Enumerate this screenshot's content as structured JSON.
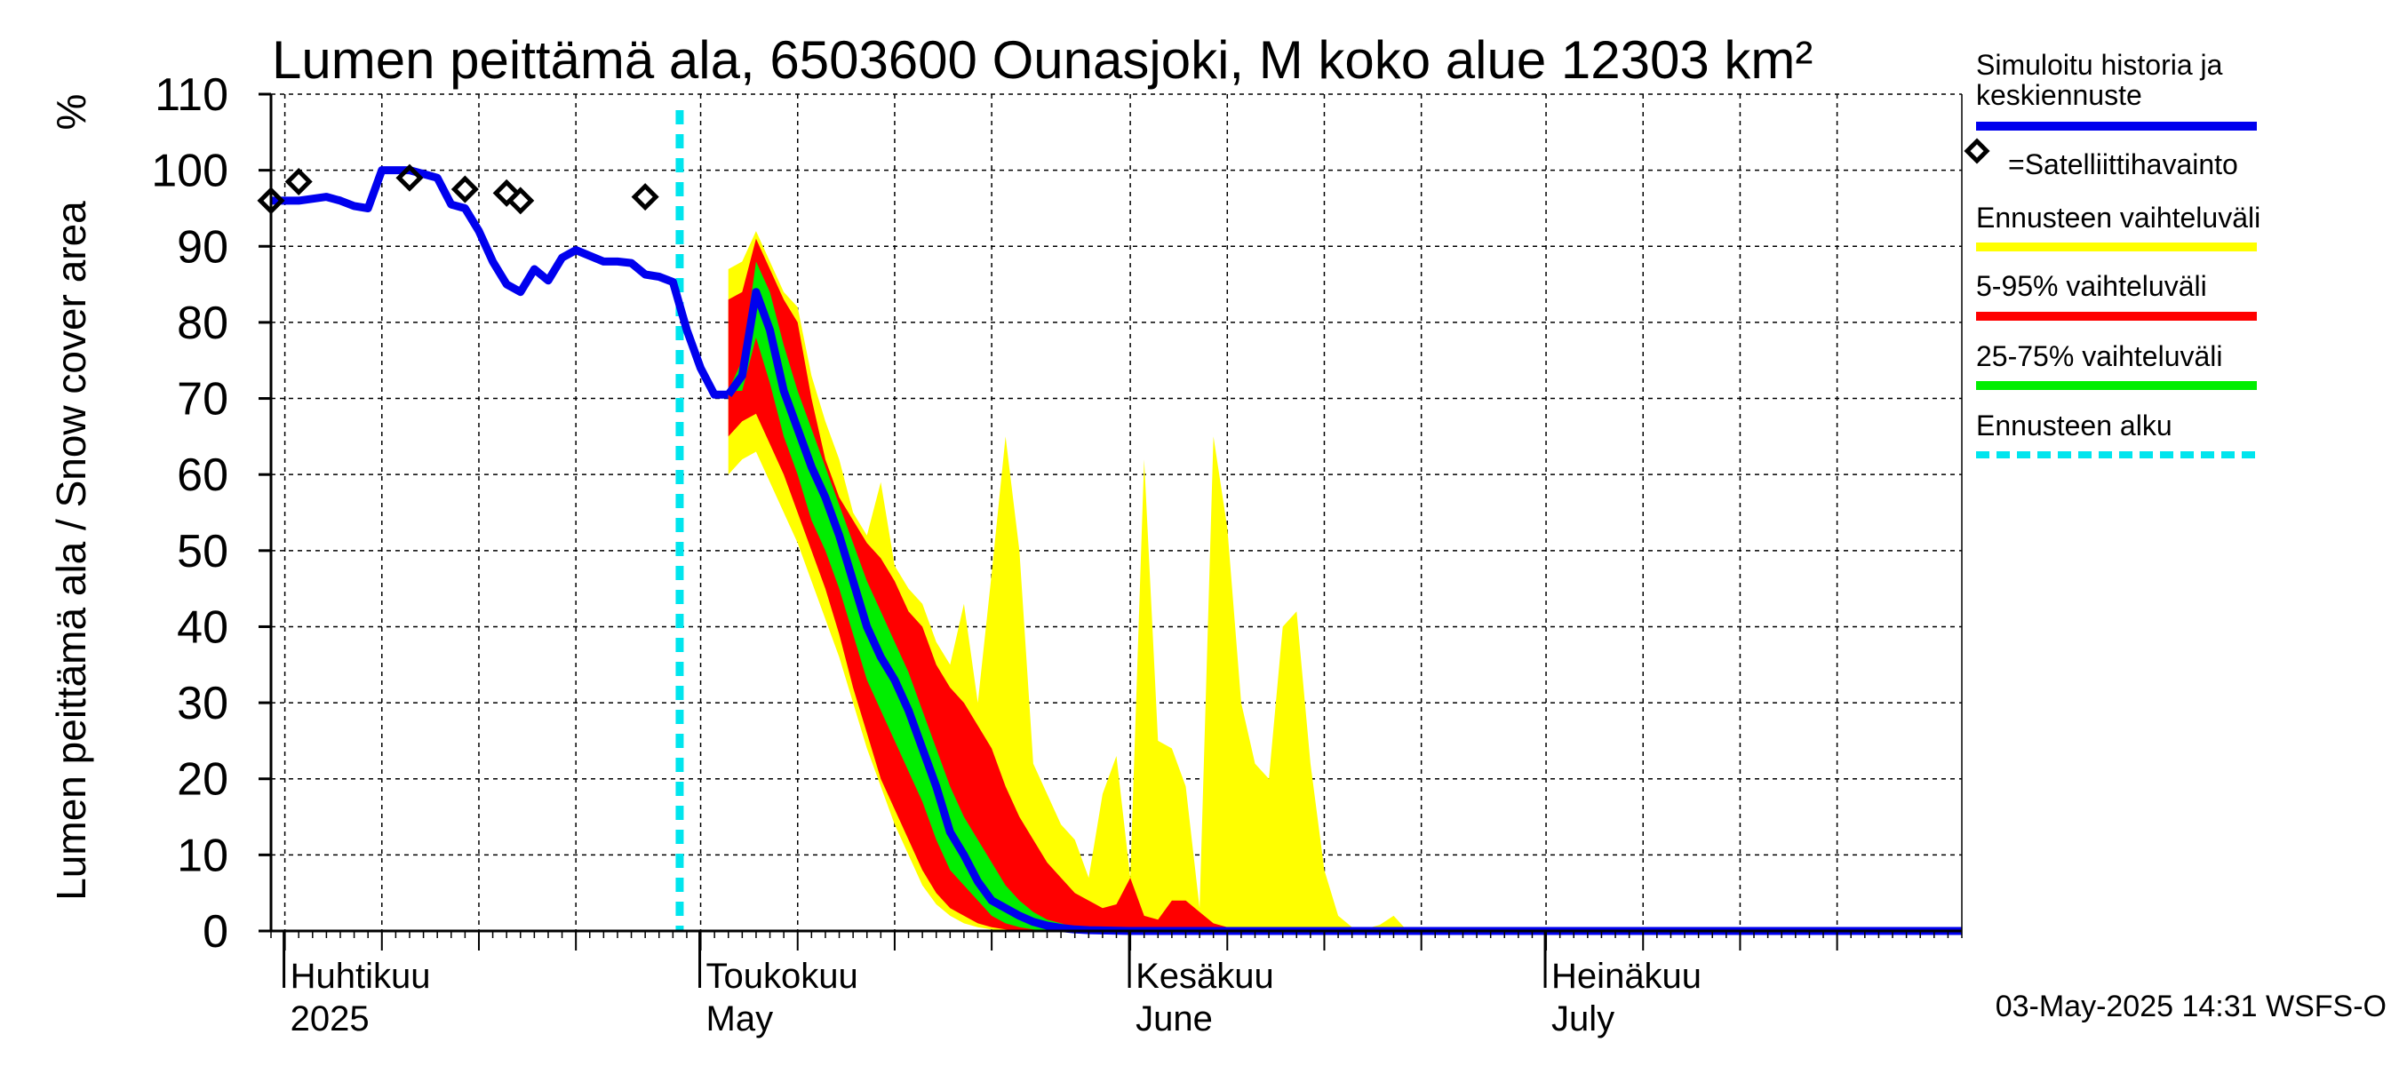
{
  "chart_data": {
    "type": "area",
    "title": "Lumen peittämä ala, 6503600 Ounasjoki, M koko alue 12303 km²",
    "ylabel": "Lumen peittämä ala / Snow cover area",
    "yunit": "%",
    "ylim": [
      0,
      110
    ],
    "yticks": [
      0,
      10,
      20,
      30,
      40,
      50,
      60,
      70,
      80,
      90,
      100,
      110
    ],
    "xlim": [
      "2025-03-31",
      "2025-07-31"
    ],
    "month_labels": [
      {
        "date": "2025-04-01",
        "line1": "Huhtikuu",
        "line2": "2025"
      },
      {
        "date": "2025-05-01",
        "line1": "Toukokuu",
        "line2": "May"
      },
      {
        "date": "2025-06-01",
        "line1": "Kesäkuu",
        "line2": "June"
      },
      {
        "date": "2025-07-01",
        "line1": "Heinäkuu",
        "line2": "July"
      }
    ],
    "forecast_start": "2025-04-30",
    "colors": {
      "history": "#0000ee",
      "band_yellow": "#ffff00",
      "band_red": "#ff0000",
      "band_green": "#00ee00",
      "forecast_start": "#00e5ee",
      "observation": "#000000"
    },
    "history": [
      [
        "2025-03-31",
        96
      ],
      [
        "2025-04-02",
        96
      ],
      [
        "2025-04-04",
        96.5
      ],
      [
        "2025-04-05",
        96
      ],
      [
        "2025-04-06",
        95.3
      ],
      [
        "2025-04-07",
        95
      ],
      [
        "2025-04-08",
        100
      ],
      [
        "2025-04-10",
        100
      ],
      [
        "2025-04-11",
        99.5
      ],
      [
        "2025-04-12",
        99
      ],
      [
        "2025-04-13",
        95.5
      ],
      [
        "2025-04-14",
        95
      ],
      [
        "2025-04-15",
        92
      ],
      [
        "2025-04-16",
        88
      ],
      [
        "2025-04-17",
        85
      ],
      [
        "2025-04-18",
        84
      ],
      [
        "2025-04-19",
        87
      ],
      [
        "2025-04-20",
        85.5
      ],
      [
        "2025-04-21",
        88.5
      ],
      [
        "2025-04-22",
        89.5
      ],
      [
        "2025-04-24",
        88
      ],
      [
        "2025-04-25",
        88
      ],
      [
        "2025-04-26",
        87.8
      ],
      [
        "2025-04-27",
        86.3
      ],
      [
        "2025-04-28",
        86
      ],
      [
        "2025-04-29",
        85.3
      ],
      [
        "2025-04-30",
        79
      ],
      [
        "2025-05-01",
        74
      ],
      [
        "2025-05-02",
        70.5
      ],
      [
        "2025-05-03",
        70.5
      ]
    ],
    "median": [
      [
        "2025-05-03",
        70.5
      ],
      [
        "2025-05-04",
        73
      ],
      [
        "2025-05-05",
        84
      ],
      [
        "2025-05-06",
        79
      ],
      [
        "2025-05-07",
        71
      ],
      [
        "2025-05-08",
        66
      ],
      [
        "2025-05-09",
        61
      ],
      [
        "2025-05-10",
        57
      ],
      [
        "2025-05-11",
        52
      ],
      [
        "2025-05-12",
        46
      ],
      [
        "2025-05-13",
        40
      ],
      [
        "2025-05-14",
        36
      ],
      [
        "2025-05-15",
        33
      ],
      [
        "2025-05-16",
        29
      ],
      [
        "2025-05-17",
        24
      ],
      [
        "2025-05-18",
        19
      ],
      [
        "2025-05-19",
        13
      ],
      [
        "2025-05-20",
        10
      ],
      [
        "2025-05-21",
        6.5
      ],
      [
        "2025-05-22",
        4
      ],
      [
        "2025-05-23",
        3
      ],
      [
        "2025-05-24",
        2
      ],
      [
        "2025-05-25",
        1.2
      ],
      [
        "2025-05-26",
        0.7
      ],
      [
        "2025-05-27",
        0.4
      ],
      [
        "2025-05-28",
        0.2
      ],
      [
        "2025-05-29",
        0.1
      ],
      [
        "2025-06-01",
        0
      ],
      [
        "2025-07-31",
        0
      ]
    ],
    "band_yellow": [
      [
        "2025-05-03",
        87,
        60
      ],
      [
        "2025-05-04",
        88,
        62
      ],
      [
        "2025-05-05",
        92,
        63
      ],
      [
        "2025-05-06",
        88,
        59
      ],
      [
        "2025-05-07",
        84,
        55
      ],
      [
        "2025-05-08",
        82,
        51
      ],
      [
        "2025-05-09",
        73,
        46
      ],
      [
        "2025-05-10",
        67,
        41
      ],
      [
        "2025-05-11",
        62,
        36
      ],
      [
        "2025-05-12",
        55,
        30
      ],
      [
        "2025-05-13",
        52,
        24
      ],
      [
        "2025-05-14",
        59,
        19
      ],
      [
        "2025-05-15",
        48,
        14
      ],
      [
        "2025-05-16",
        45,
        10
      ],
      [
        "2025-05-17",
        43,
        6
      ],
      [
        "2025-05-18",
        38,
        3.5
      ],
      [
        "2025-05-19",
        35,
        2
      ],
      [
        "2025-05-20",
        43,
        1
      ],
      [
        "2025-05-21",
        30,
        0.5
      ],
      [
        "2025-05-22",
        47,
        0.2
      ],
      [
        "2025-05-23",
        65,
        0
      ],
      [
        "2025-05-24",
        50,
        0
      ],
      [
        "2025-05-25",
        22,
        0
      ],
      [
        "2025-05-26",
        18,
        0
      ],
      [
        "2025-05-27",
        14,
        0
      ],
      [
        "2025-05-28",
        12,
        0
      ],
      [
        "2025-05-29",
        7,
        0
      ],
      [
        "2025-05-30",
        18,
        0
      ],
      [
        "2025-05-31",
        23,
        0
      ],
      [
        "2025-06-01",
        7,
        0
      ],
      [
        "2025-06-02",
        62,
        0
      ],
      [
        "2025-06-03",
        25,
        0
      ],
      [
        "2025-06-04",
        24,
        0
      ],
      [
        "2025-06-05",
        19,
        0
      ],
      [
        "2025-06-06",
        3,
        0
      ],
      [
        "2025-06-07",
        65,
        0
      ],
      [
        "2025-06-08",
        53,
        0
      ],
      [
        "2025-06-09",
        30,
        0
      ],
      [
        "2025-06-10",
        22,
        0
      ],
      [
        "2025-06-11",
        20,
        0
      ],
      [
        "2025-06-12",
        40,
        0
      ],
      [
        "2025-06-13",
        42,
        0
      ],
      [
        "2025-06-14",
        22,
        0
      ],
      [
        "2025-06-15",
        8,
        0
      ],
      [
        "2025-06-16",
        2,
        0
      ],
      [
        "2025-06-17",
        0.5,
        0
      ],
      [
        "2025-06-18",
        0.3,
        0
      ],
      [
        "2025-06-19",
        0.8,
        0
      ],
      [
        "2025-06-20",
        2,
        0
      ],
      [
        "2025-06-21",
        0,
        0
      ],
      [
        "2025-07-31",
        0,
        0
      ]
    ],
    "band_red": [
      [
        "2025-05-03",
        83,
        65
      ],
      [
        "2025-05-04",
        84,
        67
      ],
      [
        "2025-05-05",
        91,
        68
      ],
      [
        "2025-05-06",
        87,
        64
      ],
      [
        "2025-05-07",
        83,
        60
      ],
      [
        "2025-05-08",
        80,
        55
      ],
      [
        "2025-05-09",
        70,
        50
      ],
      [
        "2025-05-10",
        62,
        45
      ],
      [
        "2025-05-11",
        57,
        39
      ],
      [
        "2025-05-12",
        54,
        32
      ],
      [
        "2025-05-13",
        51,
        26
      ],
      [
        "2025-05-14",
        49,
        20
      ],
      [
        "2025-05-15",
        46,
        16
      ],
      [
        "2025-05-16",
        42,
        12
      ],
      [
        "2025-05-17",
        40,
        8
      ],
      [
        "2025-05-18",
        35,
        5
      ],
      [
        "2025-05-19",
        32,
        3
      ],
      [
        "2025-05-20",
        30,
        2
      ],
      [
        "2025-05-21",
        27,
        1
      ],
      [
        "2025-05-22",
        24,
        0.5
      ],
      [
        "2025-05-23",
        19,
        0.2
      ],
      [
        "2025-05-24",
        15,
        0
      ],
      [
        "2025-05-25",
        12,
        0
      ],
      [
        "2025-05-26",
        9,
        0
      ],
      [
        "2025-05-27",
        7,
        0
      ],
      [
        "2025-05-28",
        5,
        0
      ],
      [
        "2025-05-29",
        4,
        0
      ],
      [
        "2025-05-30",
        3,
        0
      ],
      [
        "2025-05-31",
        3.5,
        0
      ],
      [
        "2025-06-01",
        7,
        0
      ],
      [
        "2025-06-02",
        2,
        0
      ],
      [
        "2025-06-03",
        1.5,
        0
      ],
      [
        "2025-06-04",
        4,
        0
      ],
      [
        "2025-06-05",
        4,
        0
      ],
      [
        "2025-06-06",
        2.5,
        0
      ],
      [
        "2025-06-07",
        1,
        0
      ],
      [
        "2025-06-08",
        0.5,
        0
      ],
      [
        "2025-06-09",
        0.3,
        0
      ],
      [
        "2025-06-10",
        0.2,
        0
      ],
      [
        "2025-06-11",
        0,
        0
      ],
      [
        "2025-07-31",
        0,
        0
      ]
    ],
    "band_green": [
      [
        "2025-05-03",
        71,
        71
      ],
      [
        "2025-05-04",
        75,
        71
      ],
      [
        "2025-05-05",
        88,
        78
      ],
      [
        "2025-05-06",
        84,
        72
      ],
      [
        "2025-05-07",
        77,
        65
      ],
      [
        "2025-05-08",
        71,
        60
      ],
      [
        "2025-05-09",
        66,
        54
      ],
      [
        "2025-05-10",
        61,
        50
      ],
      [
        "2025-05-11",
        56,
        45
      ],
      [
        "2025-05-12",
        51,
        39
      ],
      [
        "2025-05-13",
        46,
        33
      ],
      [
        "2025-05-14",
        42,
        29
      ],
      [
        "2025-05-15",
        38,
        25
      ],
      [
        "2025-05-16",
        34,
        21
      ],
      [
        "2025-05-17",
        29,
        17
      ],
      [
        "2025-05-18",
        24,
        12
      ],
      [
        "2025-05-19",
        19,
        8
      ],
      [
        "2025-05-20",
        15,
        6
      ],
      [
        "2025-05-21",
        12,
        4
      ],
      [
        "2025-05-22",
        9,
        2
      ],
      [
        "2025-05-23",
        6,
        1
      ],
      [
        "2025-05-24",
        4,
        0.5
      ],
      [
        "2025-05-25",
        2.5,
        0.2
      ],
      [
        "2025-05-26",
        1.5,
        0
      ],
      [
        "2025-05-27",
        1,
        0
      ],
      [
        "2025-05-28",
        0.5,
        0
      ],
      [
        "2025-05-29",
        0.3,
        0
      ],
      [
        "2025-05-30",
        0.2,
        0
      ],
      [
        "2025-05-31",
        0.1,
        0
      ],
      [
        "2025-06-01",
        0,
        0
      ],
      [
        "2025-07-31",
        0,
        0
      ]
    ],
    "observations": [
      [
        "2025-03-31",
        96
      ],
      [
        "2025-04-02",
        98.5
      ],
      [
        "2025-04-10",
        99
      ],
      [
        "2025-04-14",
        97.5
      ],
      [
        "2025-04-17",
        97
      ],
      [
        "2025-04-18",
        96
      ],
      [
        "2025-04-27",
        96.5
      ]
    ],
    "legend": [
      {
        "label": "Simuloitu historia ja keskiennuste",
        "lines": [
          "Simuloitu historia ja",
          "keskiennuste"
        ],
        "kind": "line",
        "color": "#0000ee"
      },
      {
        "label": "=Satelliittihavainto",
        "lines": [
          "=Satelliittihavainto"
        ],
        "kind": "diamond",
        "color": "#000000"
      },
      {
        "label": "Ennusteen vaihteluväli",
        "lines": [
          "Ennusteen vaihteluväli"
        ],
        "kind": "line",
        "color": "#ffff00"
      },
      {
        "label": "5-95% vaihteluväli",
        "lines": [
          "5-95% vaihteluväli"
        ],
        "kind": "line",
        "color": "#ff0000"
      },
      {
        "label": "25-75% vaihteluväli",
        "lines": [
          "25-75% vaihteluväli"
        ],
        "kind": "line",
        "color": "#00ee00"
      },
      {
        "label": "Ennusteen alku",
        "lines": [
          "Ennusteen alku"
        ],
        "kind": "dashed",
        "color": "#00e5ee"
      }
    ],
    "footer": "03-May-2025 14:31 WSFS-O"
  }
}
